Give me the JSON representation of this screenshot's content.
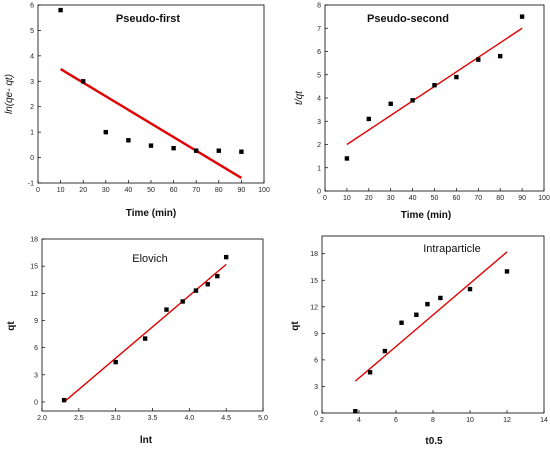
{
  "chart_data": [
    {
      "type": "scatter",
      "title": "Pseudo-first",
      "xlabel": "Time (min)",
      "ylabel": "ln(qe- qt)",
      "xlim": [
        0,
        100
      ],
      "ylim": [
        -1,
        6
      ],
      "xticks": [
        "0",
        "10",
        "20",
        "30",
        "40",
        "50",
        "60",
        "70",
        "80",
        "90",
        "100"
      ],
      "yticks": [
        "-1",
        "0",
        "1",
        "2",
        "3",
        "4",
        "5",
        "6"
      ],
      "points": {
        "x": [
          10,
          20,
          30,
          40,
          50,
          60,
          70,
          80,
          90
        ],
        "y": [
          5.8,
          3.0,
          1.0,
          0.68,
          0.47,
          0.37,
          0.27,
          0.27,
          0.23
        ]
      },
      "fit_line": {
        "x": [
          10,
          90
        ],
        "y": [
          3.48,
          -0.8
        ]
      }
    },
    {
      "type": "scatter",
      "title": "Pseudo-second",
      "xlabel": "Time (min)",
      "ylabel": "t/qt",
      "xlim": [
        0,
        100
      ],
      "ylim": [
        0,
        8
      ],
      "xticks": [
        "0",
        "10",
        "20",
        "30",
        "40",
        "50",
        "60",
        "70",
        "80",
        "90",
        "100"
      ],
      "yticks": [
        "0",
        "1",
        "2",
        "3",
        "4",
        "5",
        "6",
        "7",
        "8"
      ],
      "points": {
        "x": [
          10,
          20,
          30,
          40,
          50,
          60,
          70,
          80,
          90
        ],
        "y": [
          1.4,
          3.1,
          3.75,
          3.9,
          4.55,
          4.9,
          5.65,
          5.8,
          7.5
        ]
      },
      "fit_line": {
        "x": [
          10,
          90
        ],
        "y": [
          2.0,
          7.0
        ]
      }
    },
    {
      "type": "scatter",
      "title": "Elovich",
      "xlabel": "lnt",
      "ylabel": "qt",
      "xlim": [
        2.0,
        5.0
      ],
      "ylim": [
        -1,
        18
      ],
      "xticks": [
        "2.0",
        "2.5",
        "3.0",
        "3.5",
        "4.0",
        "4.5",
        "5.0"
      ],
      "yticks": [
        "0",
        "3",
        "6",
        "9",
        "12",
        "15",
        "18"
      ],
      "points": {
        "x": [
          2.3,
          3.0,
          3.4,
          3.69,
          3.91,
          4.09,
          4.25,
          4.38,
          4.5
        ],
        "y": [
          0.2,
          4.4,
          7.0,
          10.2,
          11.1,
          12.3,
          13.0,
          13.9,
          16.0
        ]
      },
      "fit_line": {
        "x": [
          2.3,
          4.5
        ],
        "y": [
          0.0,
          15.2
        ]
      }
    },
    {
      "type": "scatter",
      "title": "Intraparticle",
      "xlabel": "t0.5",
      "ylabel": "qt",
      "xlim": [
        2,
        14
      ],
      "ylim": [
        0,
        20
      ],
      "xticks": [
        "2",
        "4",
        "6",
        "8",
        "10",
        "12",
        "14"
      ],
      "yticks": [
        "0",
        "3",
        "6",
        "9",
        "12",
        "15",
        "18"
      ],
      "points": {
        "x": [
          3.8,
          4.6,
          5.4,
          6.3,
          7.1,
          7.7,
          8.4,
          10.0,
          12.0
        ],
        "y": [
          0.2,
          4.6,
          7.0,
          10.2,
          11.1,
          12.3,
          13.0,
          14.0,
          16.0
        ]
      },
      "fit_line": {
        "x": [
          3.8,
          12.0
        ],
        "y": [
          3.6,
          18.2
        ]
      }
    }
  ]
}
